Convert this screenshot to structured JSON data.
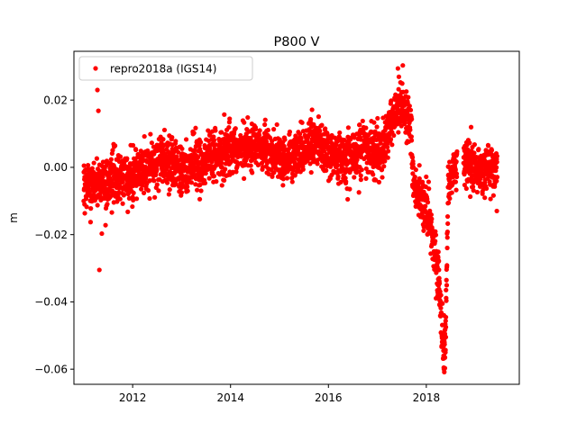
{
  "chart_data": {
    "type": "scatter",
    "title": "P800 V",
    "ylabel": "m",
    "xlabel": "",
    "xlim": [
      2010.8,
      2019.9
    ],
    "ylim": [
      -0.0645,
      0.0345
    ],
    "x_ticks": [
      2012,
      2014,
      2016,
      2018
    ],
    "x_tick_labels": [
      "2012",
      "2014",
      "2016",
      "2018"
    ],
    "y_ticks": [
      0.02,
      0.0,
      -0.02,
      -0.04,
      -0.06
    ],
    "y_tick_labels": [
      "0.02",
      "0.00",
      "−0.02",
      "−0.04",
      "−0.06"
    ],
    "grid": false,
    "legend_position": "top-left",
    "series": [
      {
        "name": "repro2018a (IGS14)",
        "color": "#ff0000",
        "marker": "dot",
        "profile": [
          [
            2011.0,
            -0.007
          ],
          [
            2011.3,
            -0.005
          ],
          [
            2011.6,
            -0.004
          ],
          [
            2011.9,
            -0.003
          ],
          [
            2012.2,
            0.0
          ],
          [
            2012.5,
            0.002
          ],
          [
            2012.8,
            0.001
          ],
          [
            2013.0,
            -0.001
          ],
          [
            2013.2,
            0.0
          ],
          [
            2013.5,
            0.002
          ],
          [
            2013.8,
            0.004
          ],
          [
            2014.0,
            0.005
          ],
          [
            2014.3,
            0.006
          ],
          [
            2014.6,
            0.007
          ],
          [
            2014.9,
            0.004
          ],
          [
            2015.2,
            0.003
          ],
          [
            2015.5,
            0.005
          ],
          [
            2015.8,
            0.008
          ],
          [
            2016.0,
            0.004
          ],
          [
            2016.3,
            0.002
          ],
          [
            2016.6,
            0.004
          ],
          [
            2016.9,
            0.006
          ],
          [
            2017.1,
            0.005
          ],
          [
            2017.3,
            0.014
          ],
          [
            2017.5,
            0.019
          ],
          [
            2017.7,
            0.012
          ],
          [
            2017.72,
            -0.004
          ],
          [
            2017.9,
            -0.01
          ],
          [
            2018.05,
            -0.015
          ],
          [
            2018.15,
            -0.022
          ],
          [
            2018.25,
            -0.033
          ],
          [
            2018.32,
            -0.05
          ],
          [
            2018.36,
            -0.058
          ],
          [
            2018.4,
            -0.045
          ],
          [
            2018.45,
            -0.005
          ],
          [
            2018.55,
            0.0
          ],
          [
            2018.7,
            0.002
          ],
          [
            2018.9,
            0.0
          ],
          [
            2019.1,
            -0.001
          ],
          [
            2019.3,
            0.0
          ],
          [
            2019.45,
            -0.001
          ]
        ],
        "noise_sd": 0.0035,
        "gaps": [
          [
            2018.63,
            2018.76
          ]
        ],
        "outliers": [
          [
            2011.28,
            0.023
          ],
          [
            2011.3,
            0.0168
          ],
          [
            2011.32,
            -0.0305
          ],
          [
            2011.37,
            -0.0197
          ],
          [
            2017.52,
            0.0303
          ],
          [
            2017.42,
            0.0294
          ],
          [
            2018.36,
            -0.06
          ],
          [
            2018.38,
            -0.0597
          ],
          [
            2018.39,
            -0.055
          ],
          [
            2018.37,
            -0.052
          ],
          [
            2018.38,
            -0.0495
          ],
          [
            2018.4,
            -0.0475
          ],
          [
            2018.36,
            -0.044
          ],
          [
            2018.33,
            -0.0405
          ],
          [
            2018.3,
            -0.038
          ],
          [
            2018.27,
            -0.0345
          ],
          [
            2018.22,
            -0.03
          ],
          [
            2018.25,
            -0.028
          ],
          [
            2018.2,
            -0.026
          ]
        ]
      }
    ]
  }
}
